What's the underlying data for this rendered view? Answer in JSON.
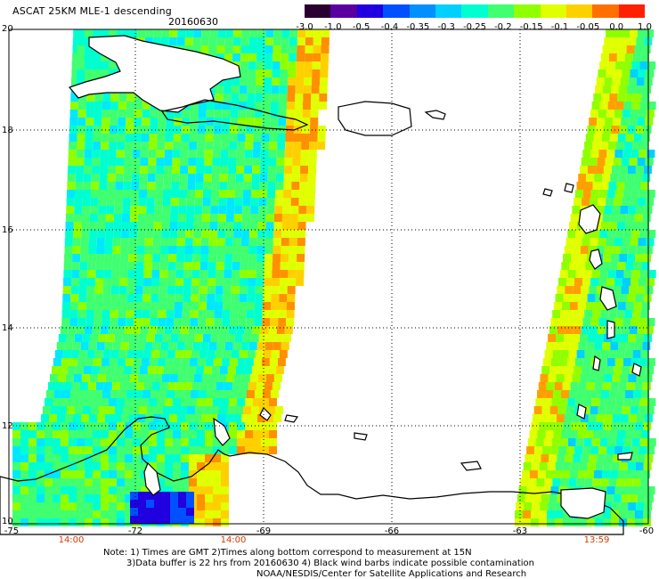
{
  "title": "ASCAT 25KM MLE-1 descending",
  "date": "20160630",
  "colorbar": {
    "labels": [
      "-3.0",
      "-1.0",
      "-0.5",
      "-0.4",
      "-0.35",
      "-0.3",
      "-0.25",
      "-0.2",
      "-0.15",
      "-0.1",
      "-0.05",
      "0.0",
      "1.0"
    ],
    "colors": [
      "#2a0030",
      "#5a00a0",
      "#2000e0",
      "#0050ff",
      "#0090ff",
      "#00d0ff",
      "#00ffd0",
      "#40ff70",
      "#90ff00",
      "#e0ff00",
      "#ffd000",
      "#ff7000",
      "#ff2000"
    ]
  },
  "map": {
    "lon_labels": [
      "-75",
      "-72",
      "-69",
      "-66",
      "-63",
      "-60"
    ],
    "lat_labels": [
      "20",
      "18",
      "16",
      "14",
      "12",
      "10"
    ],
    "time_labels": [
      "14:00",
      "14:00",
      "13:59"
    ]
  },
  "notes": [
    "Note: 1) Times are GMT 2)Times along bottom correspond to measurement at 15N",
    "3)Data buffer is 22 hrs from 20160630 4) Black wind barbs indicate possible contamination",
    "NOAA/NESDIS/Center for Satellite Applications and Research"
  ]
}
